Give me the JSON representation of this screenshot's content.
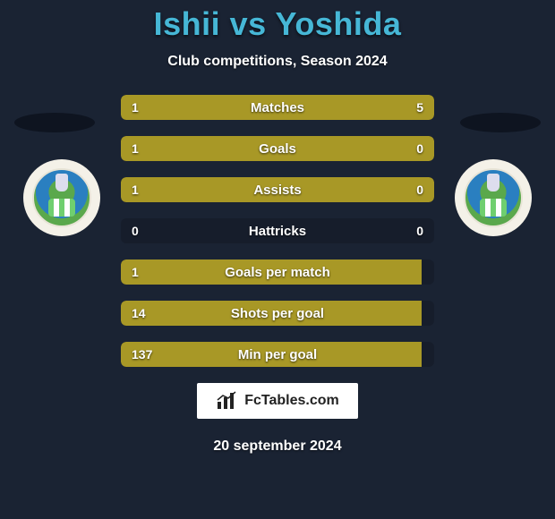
{
  "header": {
    "player1": "Ishii",
    "vs": "vs",
    "player2": "Yoshida",
    "subtitle": "Club competitions, Season 2024"
  },
  "colors": {
    "bar_left": "#a89826",
    "bar_right": "#a89826",
    "title": "#46b7d6",
    "background": "#1a2333",
    "ellipse": "#0e1420",
    "brand_bg": "#ffffff"
  },
  "stats": [
    {
      "label": "Matches",
      "left_val": "1",
      "right_val": "5",
      "left_pct": 16.7,
      "right_pct": 83.3
    },
    {
      "label": "Goals",
      "left_val": "1",
      "right_val": "0",
      "left_pct": 75,
      "right_pct": 25
    },
    {
      "label": "Assists",
      "left_val": "1",
      "right_val": "0",
      "left_pct": 75,
      "right_pct": 25
    },
    {
      "label": "Hattricks",
      "left_val": "0",
      "right_val": "0",
      "left_pct": 0,
      "right_pct": 0
    },
    {
      "label": "Goals per match",
      "left_val": "1",
      "right_val": "",
      "left_pct": 96,
      "right_pct": 0
    },
    {
      "label": "Shots per goal",
      "left_val": "14",
      "right_val": "",
      "left_pct": 96,
      "right_pct": 0
    },
    {
      "label": "Min per goal",
      "left_val": "137",
      "right_val": "",
      "left_pct": 96,
      "right_pct": 0
    }
  ],
  "brand": {
    "text": "FcTables.com"
  },
  "footer": {
    "date": "20 september 2024"
  }
}
